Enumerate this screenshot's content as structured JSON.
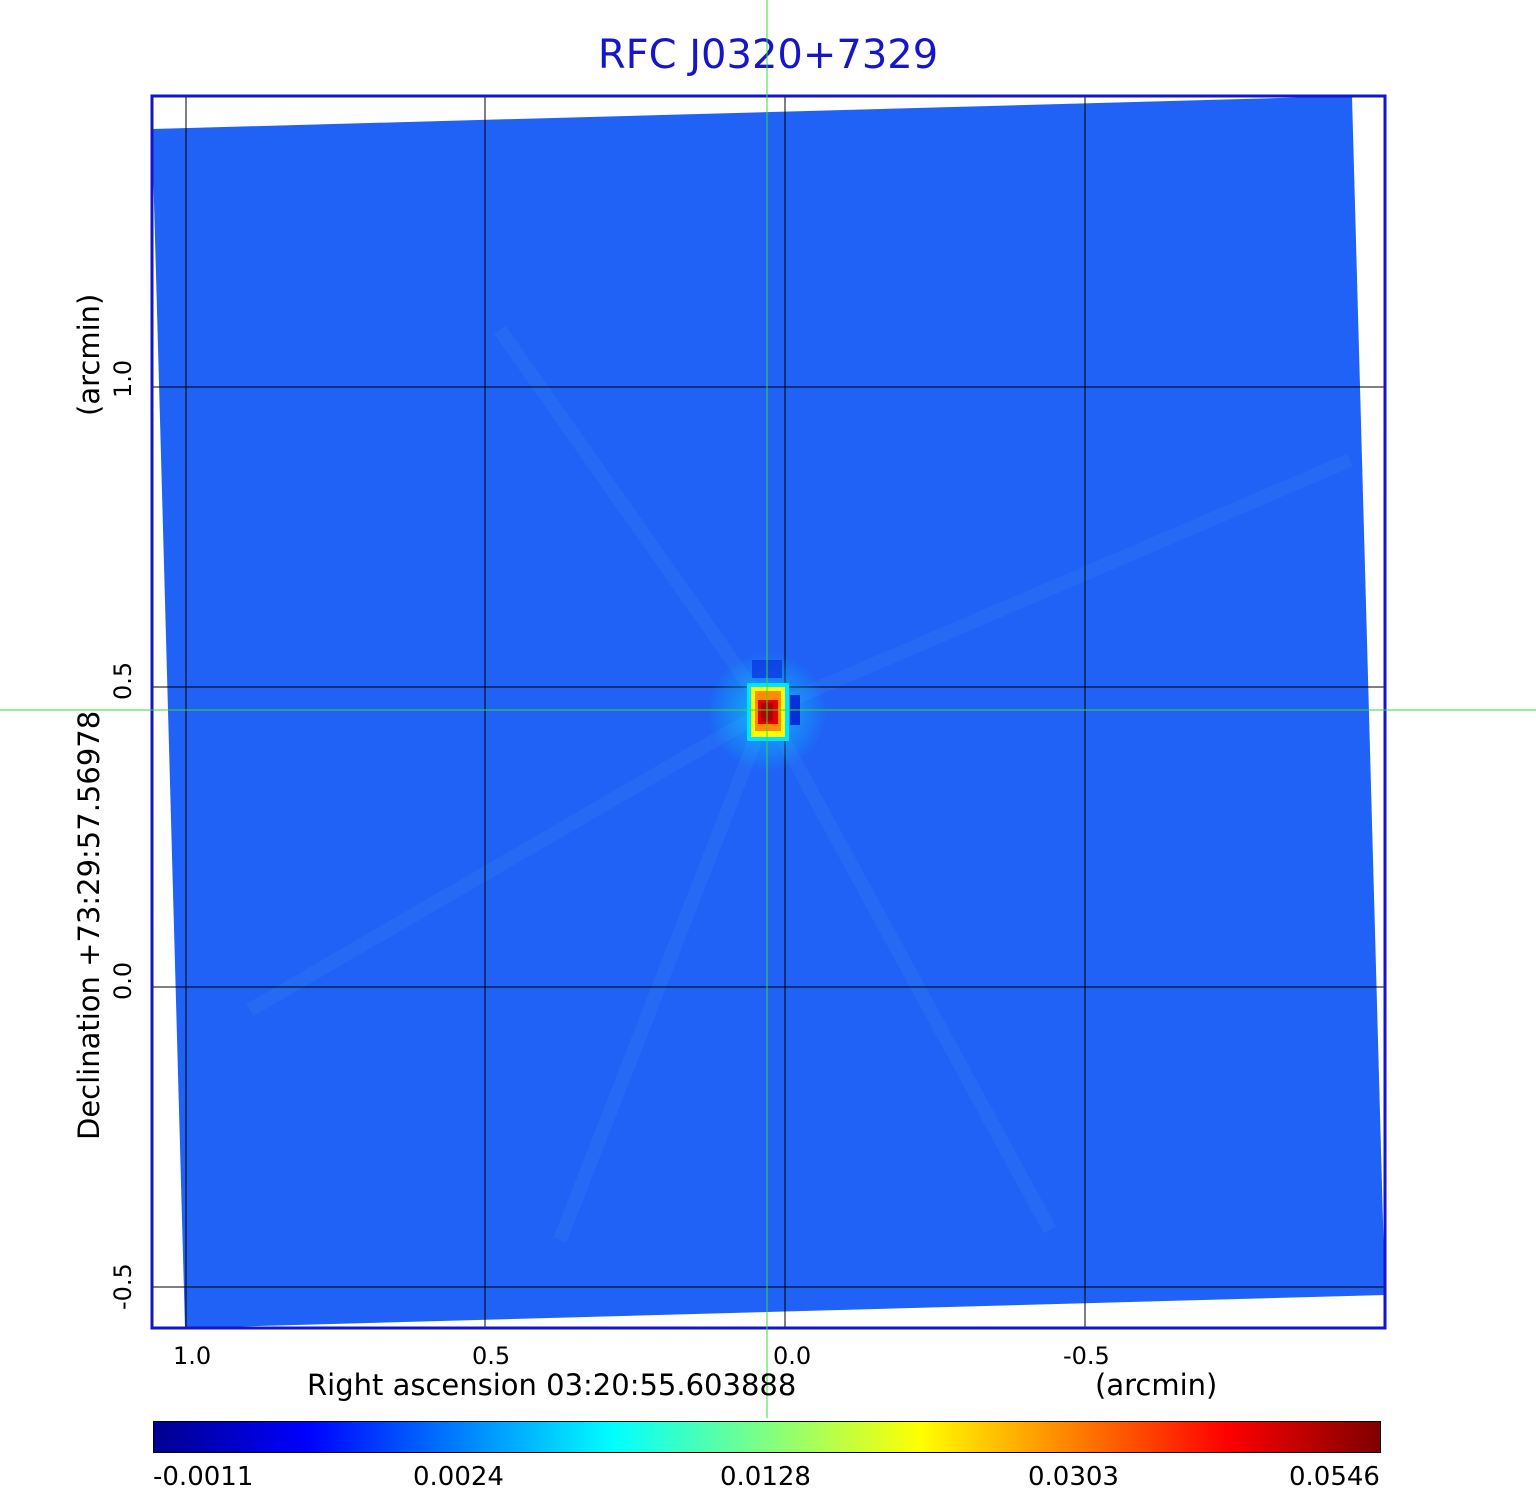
{
  "title": "RFC J0320+7329",
  "x_axis": {
    "label": "Right ascension  03:20:55.603888",
    "unit": "(arcmin)",
    "ticks": [
      "1.0",
      "0.5",
      "0.0",
      "-0.5"
    ]
  },
  "y_axis": {
    "label": "Declination  +73:29:57.56978",
    "unit": "(arcmin)",
    "ticks": [
      "-0.5",
      "0.0",
      "0.5",
      "1.0"
    ]
  },
  "colorbar": {
    "ticks": [
      "-0.0011",
      "0.0024",
      "0.0128",
      "0.0303",
      "0.0546"
    ],
    "colormap": [
      "#00008f",
      "#0000ff",
      "#0080ff",
      "#00ffff",
      "#80ff80",
      "#ffff00",
      "#ff8000",
      "#ff0000",
      "#800000"
    ]
  },
  "colors": {
    "frame": "#1616c8",
    "background_map": "#1f62f5",
    "crosshair": "#33dd33",
    "source_peak": "#d00000"
  }
}
